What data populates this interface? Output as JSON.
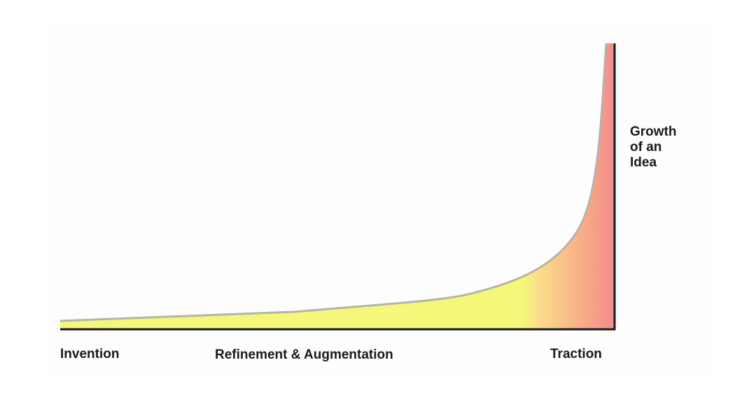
{
  "diagram": {
    "stages": [
      {
        "label": "Invention"
      },
      {
        "label": "Refinement & Augmentation"
      },
      {
        "label": "Traction"
      }
    ],
    "curve_label_lines": [
      "Growth",
      "of an",
      "Idea"
    ],
    "colors": {
      "fill_start": "#f4f779",
      "fill_end": "#f28b8b",
      "curve_stroke": "#b3b3b3",
      "baseline": "#1a1a1a"
    }
  }
}
